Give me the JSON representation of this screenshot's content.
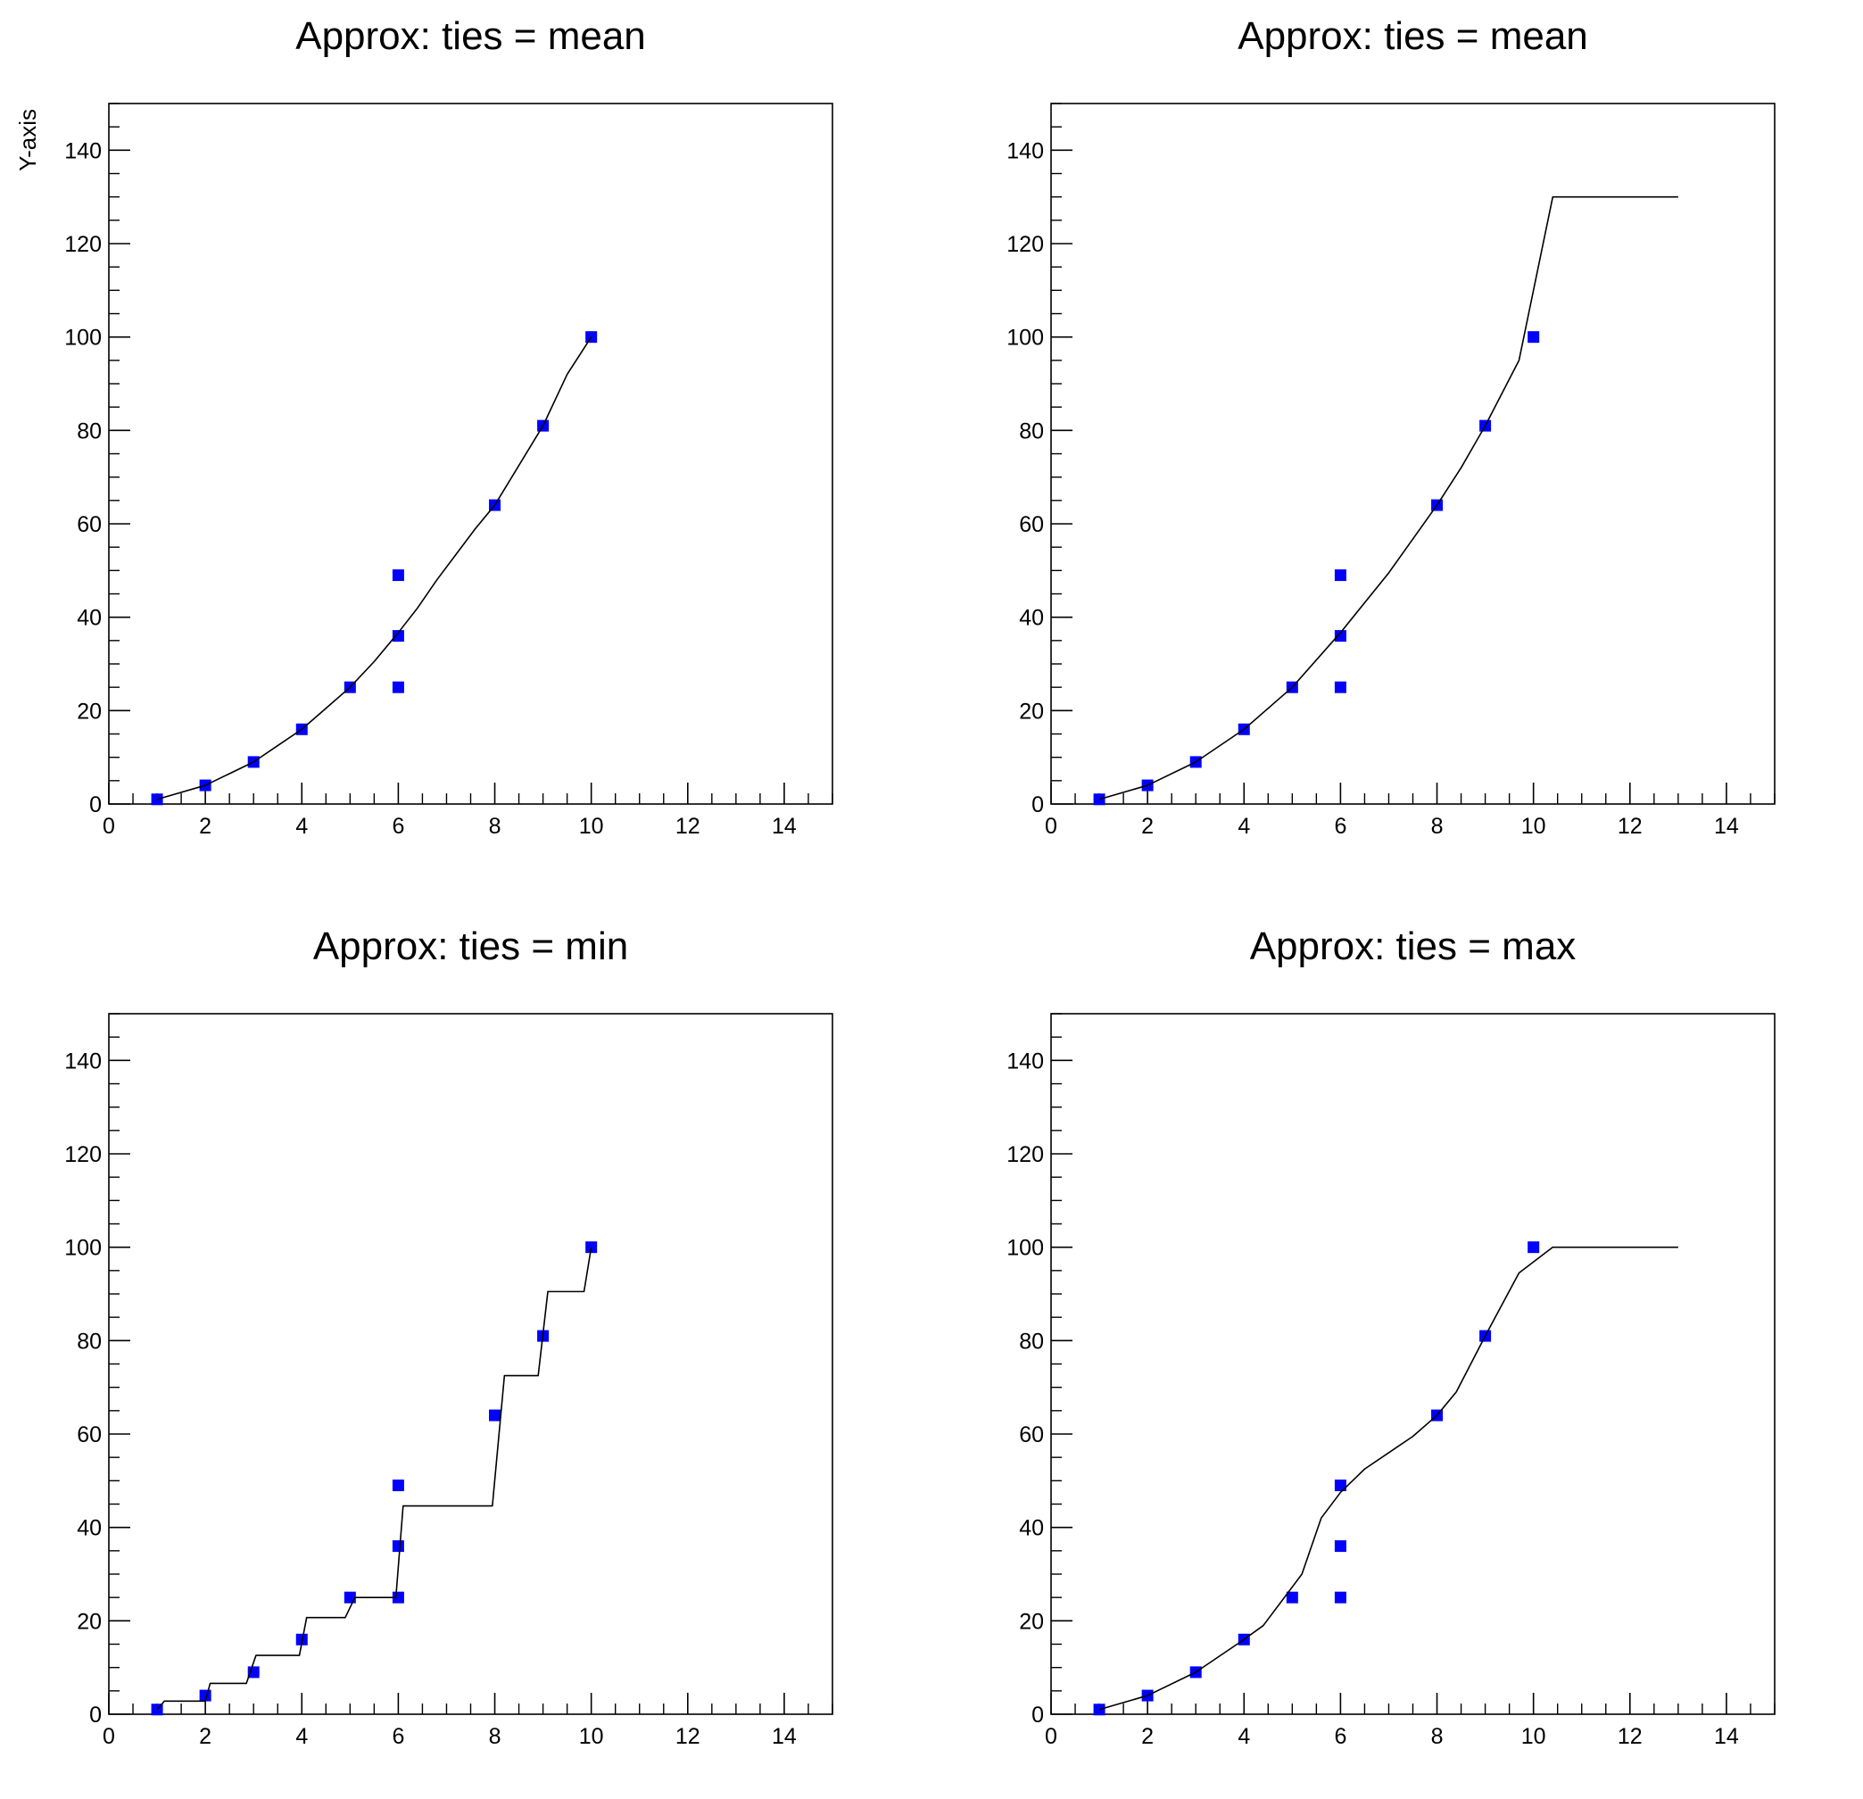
{
  "figure": {
    "background": "#ffffff"
  },
  "chart_data": [
    {
      "type": "scatter",
      "title": "Approx: ties = mean",
      "ylabel": "Y-axis",
      "xlabel": "",
      "xlim": [
        0,
        15
      ],
      "ylim": [
        0,
        150
      ],
      "xticks": [
        0,
        2,
        4,
        6,
        8,
        10,
        12,
        14
      ],
      "yticks": [
        0,
        20,
        40,
        60,
        80,
        100,
        120,
        140
      ],
      "grid": false,
      "points": {
        "marker": "square",
        "color": "#0000ff",
        "x": [
          1,
          2,
          3,
          4,
          5,
          6,
          6,
          6,
          8,
          9,
          10
        ],
        "y": [
          1,
          4,
          9,
          16,
          25,
          25,
          36,
          49,
          64,
          81,
          100
        ]
      },
      "line": {
        "color": "#000000",
        "x": [
          1.0,
          2.0,
          2.5,
          3.0,
          3.5,
          4.0,
          4.5,
          5.0,
          5.5,
          6.0,
          6.4,
          6.8,
          7.2,
          7.6,
          8.0,
          8.5,
          9.0,
          9.5,
          10.0
        ],
        "y": [
          1.0,
          4.0,
          6.5,
          9.0,
          12.5,
          16.0,
          20.5,
          25.0,
          30.5,
          36.7,
          42.0,
          48.0,
          53.5,
          59.0,
          64.0,
          72.5,
          81.0,
          92.0,
          100.0
        ]
      }
    },
    {
      "type": "scatter",
      "title": "Approx: ties = mean",
      "ylabel": "",
      "xlabel": "",
      "xlim": [
        0,
        15
      ],
      "ylim": [
        0,
        150
      ],
      "xticks": [
        0,
        2,
        4,
        6,
        8,
        10,
        12,
        14
      ],
      "yticks": [
        0,
        20,
        40,
        60,
        80,
        100,
        120,
        140
      ],
      "grid": false,
      "points": {
        "marker": "square",
        "color": "#0000ff",
        "x": [
          1,
          2,
          3,
          4,
          5,
          6,
          6,
          6,
          8,
          9,
          10
        ],
        "y": [
          1,
          4,
          9,
          16,
          25,
          25,
          36,
          49,
          64,
          81,
          100
        ]
      },
      "line": {
        "color": "#000000",
        "x": [
          1.0,
          2.0,
          3.0,
          4.0,
          5.0,
          6.0,
          7.0,
          8.0,
          8.5,
          9.0,
          9.7,
          10.4,
          13.0
        ],
        "y": [
          1.0,
          4.0,
          9.0,
          16.0,
          25.0,
          36.7,
          49.5,
          64.0,
          72.0,
          81.0,
          95.0,
          130.0,
          130.0
        ]
      }
    },
    {
      "type": "scatter",
      "title": "Approx: ties = min",
      "ylabel": "",
      "xlabel": "",
      "xlim": [
        0,
        15
      ],
      "ylim": [
        0,
        150
      ],
      "xticks": [
        0,
        2,
        4,
        6,
        8,
        10,
        12,
        14
      ],
      "yticks": [
        0,
        20,
        40,
        60,
        80,
        100,
        120,
        140
      ],
      "grid": false,
      "points": {
        "marker": "square",
        "color": "#0000ff",
        "x": [
          1,
          2,
          3,
          4,
          5,
          6,
          6,
          6,
          8,
          9,
          10
        ],
        "y": [
          1,
          4,
          9,
          16,
          25,
          25,
          36,
          49,
          64,
          81,
          100
        ]
      },
      "line": {
        "color": "#000000",
        "x": [
          1.0,
          1.15,
          2.0,
          2.1,
          2.85,
          3.05,
          3.95,
          4.1,
          4.9,
          5.1,
          5.95,
          6.1,
          7.95,
          8.2,
          8.9,
          9.1,
          9.85,
          10.0
        ],
        "y": [
          1.0,
          2.8,
          2.8,
          6.6,
          6.6,
          12.6,
          12.6,
          20.7,
          20.7,
          25.0,
          25.0,
          44.6,
          44.6,
          72.5,
          72.5,
          90.5,
          90.5,
          100.0
        ]
      }
    },
    {
      "type": "scatter",
      "title": "Approx: ties = max",
      "ylabel": "",
      "xlabel": "",
      "xlim": [
        0,
        15
      ],
      "ylim": [
        0,
        150
      ],
      "xticks": [
        0,
        2,
        4,
        6,
        8,
        10,
        12,
        14
      ],
      "yticks": [
        0,
        20,
        40,
        60,
        80,
        100,
        120,
        140
      ],
      "grid": false,
      "points": {
        "marker": "square",
        "color": "#0000ff",
        "x": [
          1,
          2,
          3,
          4,
          5,
          6,
          6,
          6,
          8,
          9,
          10
        ],
        "y": [
          1,
          4,
          9,
          16,
          25,
          25,
          36,
          49,
          64,
          81,
          100
        ]
      },
      "line": {
        "color": "#000000",
        "x": [
          1.0,
          2.0,
          3.0,
          4.0,
          4.4,
          5.2,
          5.6,
          6.0,
          6.5,
          7.0,
          7.5,
          8.0,
          8.4,
          9.0,
          9.7,
          10.4,
          13.0
        ],
        "y": [
          1.0,
          4.0,
          9.0,
          16.0,
          19.0,
          30.0,
          42.0,
          47.5,
          52.5,
          56.0,
          59.5,
          64.0,
          69.0,
          81.0,
          94.5,
          100.0,
          100.0
        ]
      }
    }
  ]
}
